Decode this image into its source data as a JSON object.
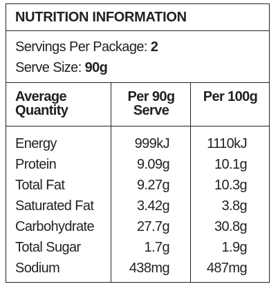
{
  "header": {
    "title": "NUTRITION INFORMATION"
  },
  "servings": {
    "label": "Servings Per Package:",
    "value": "2"
  },
  "serve_size": {
    "label": "Serve Size:",
    "value": "90g"
  },
  "table": {
    "columns": [
      "Average Quantity",
      "Per 90g Serve",
      "Per 100g"
    ],
    "rows": [
      [
        "Energy",
        "999kJ",
        "1110kJ"
      ],
      [
        "Protein",
        "9.09g",
        "10.1g"
      ],
      [
        "Total Fat",
        "9.27g",
        "10.3g"
      ],
      [
        "Saturated Fat",
        "3.42g",
        "3.8g"
      ],
      [
        "Carbohydrate",
        "27.7g",
        "30.8g"
      ],
      [
        "Total Sugar",
        "1.7g",
        "1.9g"
      ],
      [
        "Sodium",
        "438mg",
        "487mg"
      ]
    ]
  }
}
